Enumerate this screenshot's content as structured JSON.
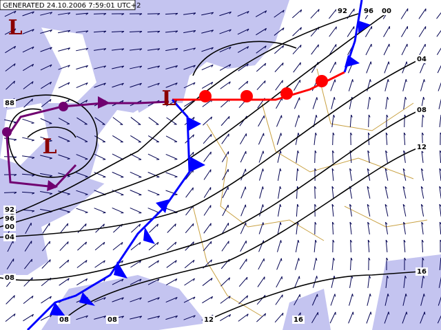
{
  "header": {
    "title": "GENERATED 24.10.2006 7:59:01 UTC+2"
  },
  "lows": [
    {
      "label": "L"
    },
    {
      "label": "L"
    },
    {
      "label": "L"
    }
  ],
  "isobar_labels": [
    {
      "label": "92"
    },
    {
      "label": "96"
    },
    {
      "label": "00"
    },
    {
      "label": "04"
    },
    {
      "label": "08"
    },
    {
      "label": "12"
    },
    {
      "label": "16"
    },
    {
      "label": "88"
    },
    {
      "label": "92"
    },
    {
      "label": "96"
    },
    {
      "label": "00"
    },
    {
      "label": "04"
    },
    {
      "label": "08"
    },
    {
      "label": "08"
    },
    {
      "label": "08"
    },
    {
      "label": "12"
    },
    {
      "label": "16"
    }
  ]
}
